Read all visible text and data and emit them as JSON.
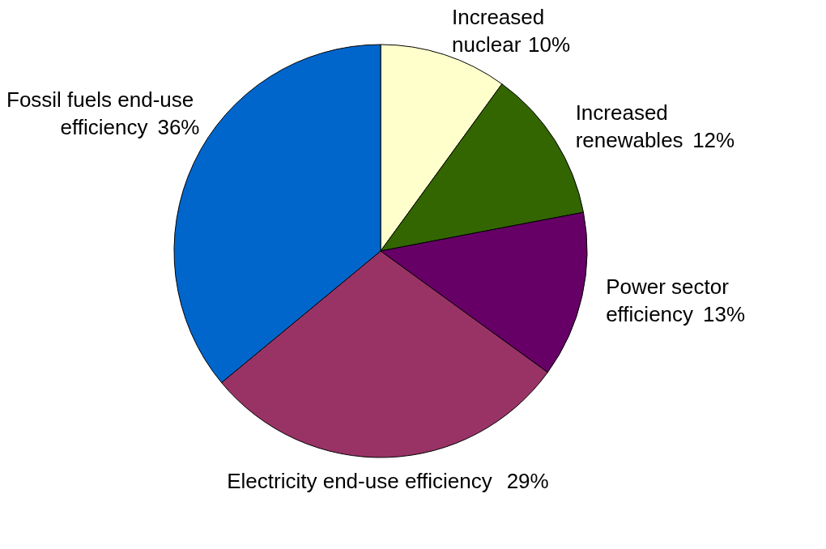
{
  "chart_data": {
    "type": "pie",
    "categories": [
      "Increased nuclear",
      "Increased renewables",
      "Power sector efficiency",
      "Electricity end-use efficiency",
      "Fossil fuels end-use efficiency"
    ],
    "values": [
      10,
      12,
      13,
      29,
      36
    ],
    "colors": [
      "#ffffcc",
      "#336600",
      "#660066",
      "#993366",
      "#0066cc"
    ],
    "value_labels": [
      "10%",
      "12%",
      "13%",
      "29%",
      "36%"
    ]
  }
}
